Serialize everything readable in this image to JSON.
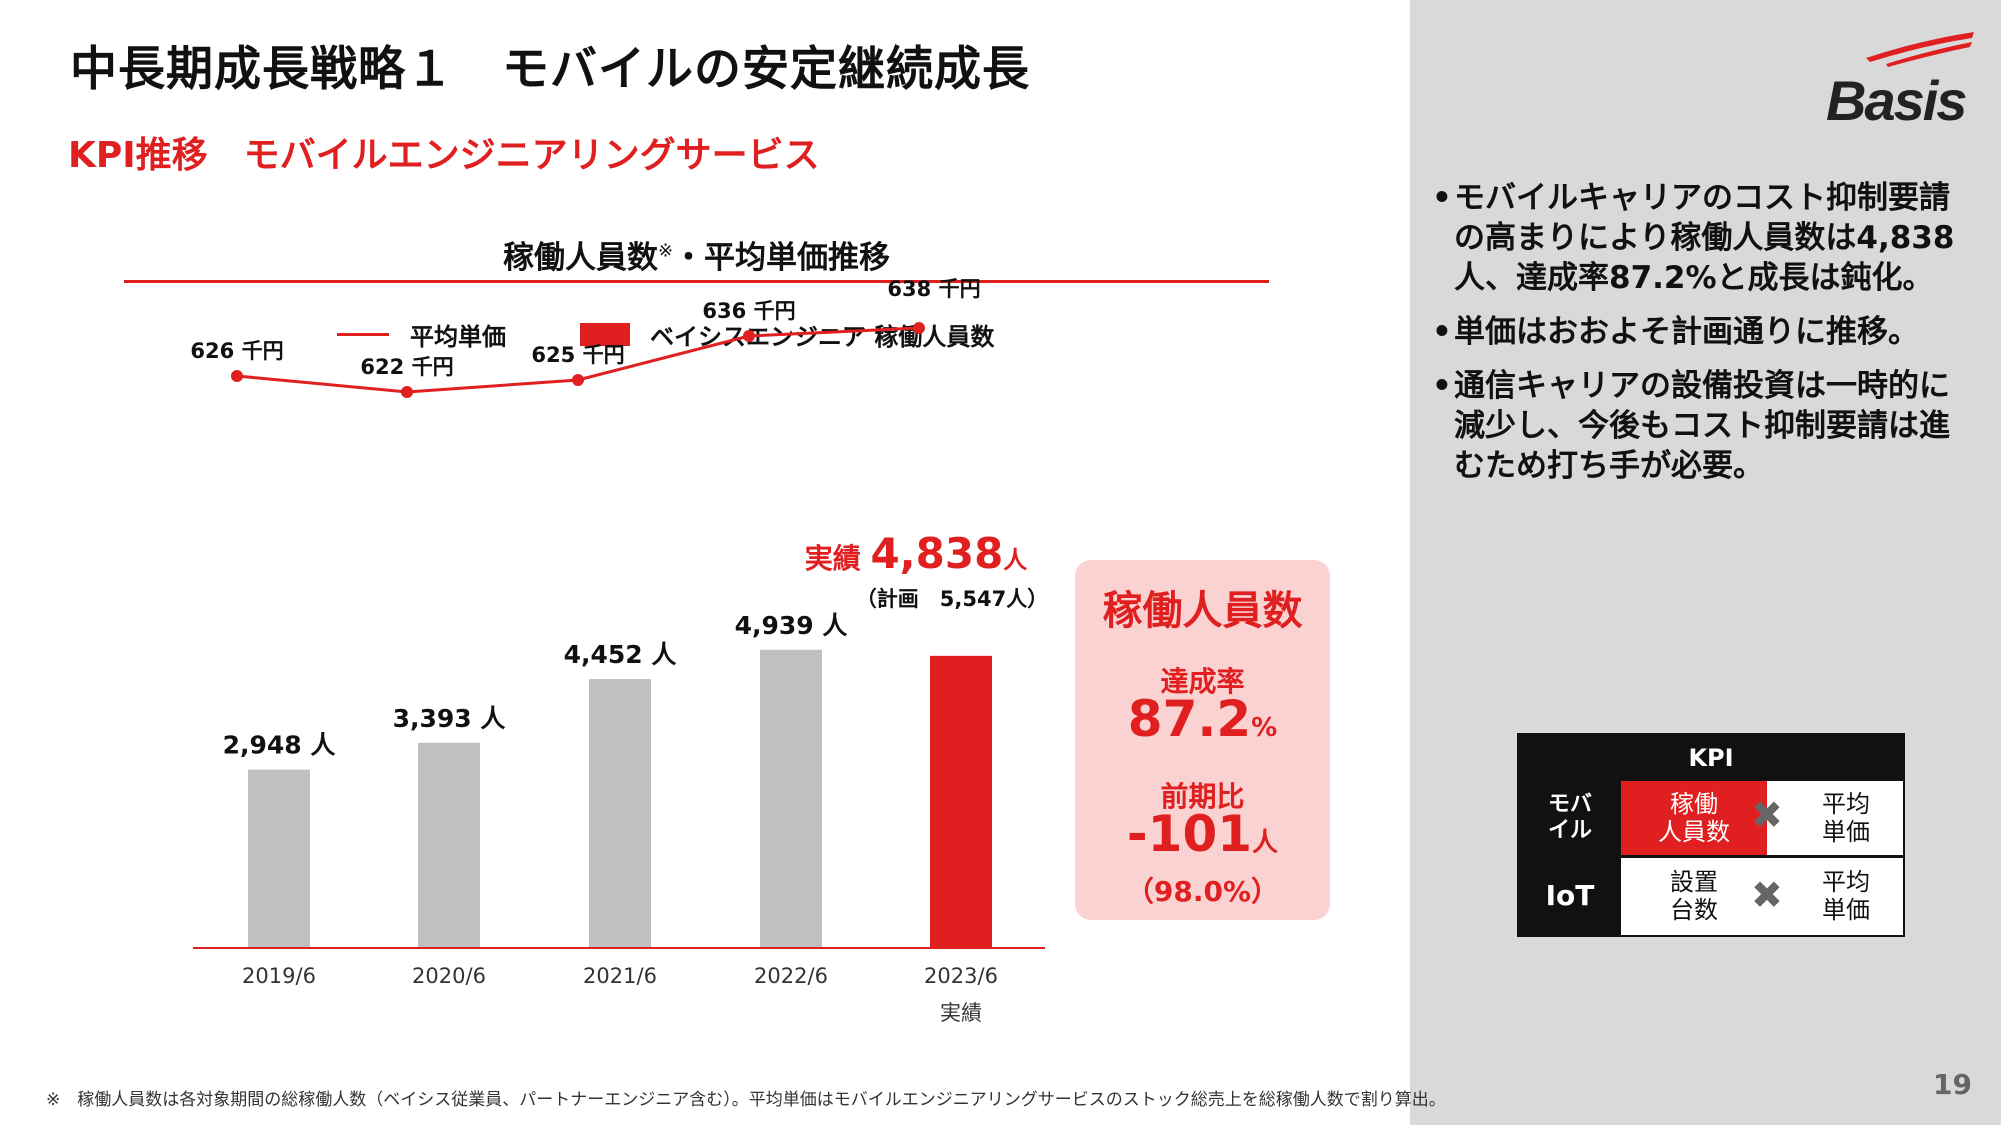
{
  "header": {
    "title": "中長期成長戦略１　モバイルの安定継続成長",
    "subtitle": "KPI推移　モバイルエンジニアリングサービス"
  },
  "logo": {
    "text": "Basis"
  },
  "chart_title": {
    "main": "稼働人員数",
    "mark": "※",
    "rest": "・平均単価推移"
  },
  "legend": {
    "line_label": "平均単価",
    "bar_label": "ベイシスエンジニア 稼働人員数"
  },
  "chart_data": {
    "type": "bar+line",
    "categories": [
      "2019/6",
      "2020/6",
      "2021/6",
      "2022/6",
      "2023/6"
    ],
    "category_sublabels": [
      "",
      "",
      "",
      "",
      "実績"
    ],
    "series": [
      {
        "name": "ベイシスエンジニア 稼働人員数",
        "type": "bar",
        "values": [
          2948,
          3393,
          4452,
          4939,
          4838
        ],
        "labels": [
          "2,948 人",
          "3,393 人",
          "4,452 人",
          "4,939 人",
          ""
        ],
        "colors": [
          "#c0c0c0",
          "#c0c0c0",
          "#c0c0c0",
          "#c0c0c0",
          "#e02020"
        ]
      },
      {
        "name": "平均単価",
        "type": "line",
        "values": [
          626,
          622,
          625,
          636,
          638
        ],
        "labels": [
          "626 千円",
          "622 千円",
          "625 千円",
          "636 千円",
          "638 千円"
        ],
        "color": "#e02020"
      }
    ],
    "line_ylim": [
      590,
      660
    ],
    "bar_ylim": [
      0,
      5550
    ],
    "last_bar_annotation": {
      "prefix": "実績",
      "value": "4,838",
      "unit": "人",
      "plan": "（計画　5,547人）"
    }
  },
  "kpi_box": {
    "title": "稼働人員数",
    "rate_label": "達成率",
    "rate_value": "87.2",
    "rate_unit": "%",
    "diff_label": "前期比",
    "diff_value": "-101",
    "diff_unit": "人",
    "diff_pct": "（98.0%）"
  },
  "bullets": [
    "モバイルキャリアのコスト抑制要請の高まりにより稼働人員数は4,838人、達成率87.2%と成長は鈍化。",
    "単価はおおよそ計画通りに推移。",
    "通信キャリアの設備投資は一時的に減少し、今後もコスト抑制要請は進むため打ち手が必要。"
  ],
  "kpi_table": {
    "header": "KPI",
    "rows": [
      {
        "label": "モバ\nイル",
        "left": "稼働\n人員数",
        "right": "平均\n単価"
      },
      {
        "label": "IoT",
        "left": "設置\n台数",
        "right": "平均\n単価"
      }
    ],
    "times_mark": "✖"
  },
  "footnote": "※　稼働人員数は各対象期間の総稼働人数（ベイシス従業員、パートナーエンジニア含む）。平均単価はモバイルエンジニアリングサービスのストック総売上を総稼働人数で割り算出。",
  "page_number": "19",
  "colors": {
    "accent": "#e02020",
    "bar_gray": "#c0c0c0",
    "panel": "#d9d9d9",
    "kpi_box_bg": "#fad2d2"
  }
}
